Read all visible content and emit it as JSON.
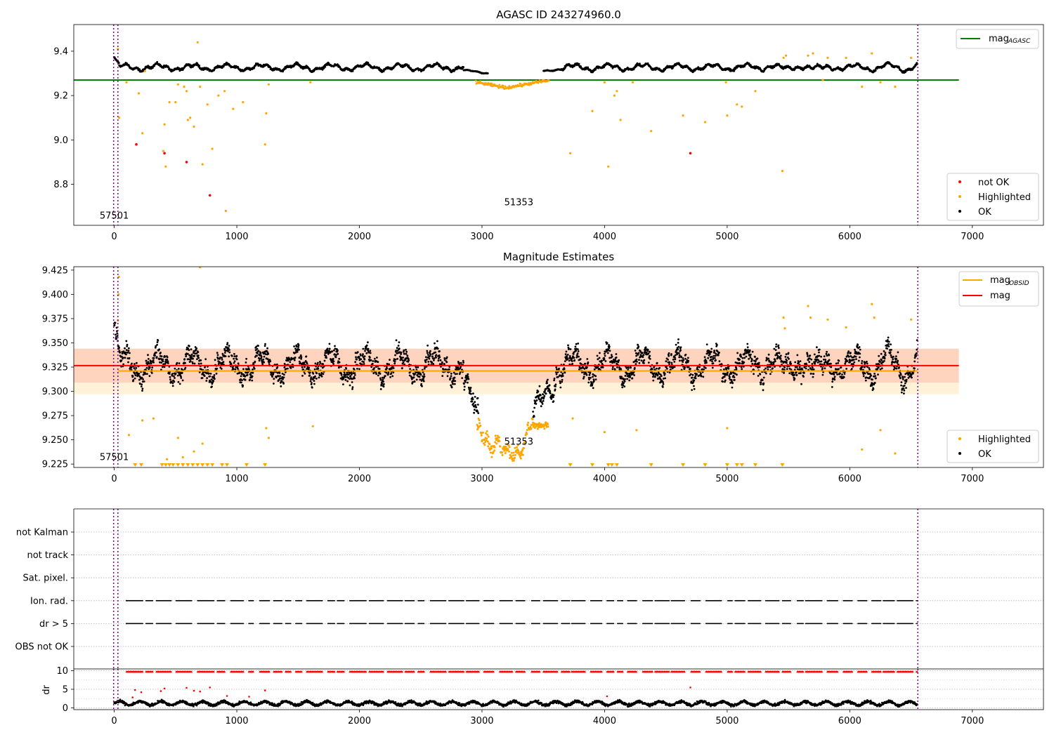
{
  "chart_data": [
    {
      "type": "scatter",
      "title": "AGASC ID 243274960.0",
      "xlim": [
        -330,
        7580
      ],
      "ylim": [
        8.615,
        9.52
      ],
      "xticks": [
        0,
        1000,
        2000,
        3000,
        4000,
        5000,
        6000,
        7000
      ],
      "yticks": [
        8.8,
        9.0,
        9.2,
        9.4
      ],
      "ytick_labels": [
        "8.8",
        "9.0",
        "9.2",
        "9.4"
      ],
      "vlines": [
        {
          "x": -5,
          "color": "#800080"
        },
        {
          "x": 30,
          "color": "#800080"
        },
        {
          "x": 6555,
          "color": "#800080"
        }
      ],
      "hline": {
        "y": 9.27,
        "x_end": 6890,
        "color": "#008000",
        "name": "magAGASC"
      },
      "annotations": [
        {
          "text": "57501",
          "x": 0,
          "y": 8.645
        },
        {
          "text": "51353",
          "x": 3300,
          "y": 8.705
        }
      ],
      "legend_top": [
        {
          "label": "mag",
          "sub": "AGASC",
          "color": "#008000",
          "kind": "line"
        }
      ],
      "legend_bottom": [
        {
          "label": "not OK",
          "color": "#ff0000",
          "kind": "marker"
        },
        {
          "label": "Highlighted",
          "color": "#ffa500",
          "kind": "marker"
        },
        {
          "label": "OK",
          "color": "#000000",
          "kind": "marker"
        }
      ],
      "series": [
        {
          "name": "OK",
          "color": "#000000",
          "profile": "ok_agasc"
        },
        {
          "name": "Highlighted",
          "color": "#ffa500",
          "points": [
            [
              30,
              9.41
            ],
            [
              40,
              9.1
            ],
            [
              100,
              9.26
            ],
            [
              200,
              9.21
            ],
            [
              230,
              9.03
            ],
            [
              250,
              9.31
            ],
            [
              400,
              8.95
            ],
            [
              410,
              9.07
            ],
            [
              420,
              8.88
            ],
            [
              450,
              9.17
            ],
            [
              500,
              9.17
            ],
            [
              520,
              9.25
            ],
            [
              570,
              9.24
            ],
            [
              590,
              9.22
            ],
            [
              600,
              9.09
            ],
            [
              620,
              9.1
            ],
            [
              650,
              9.06
            ],
            [
              680,
              9.44
            ],
            [
              700,
              9.24
            ],
            [
              720,
              8.89
            ],
            [
              760,
              9.16
            ],
            [
              800,
              8.96
            ],
            [
              850,
              9.2
            ],
            [
              900,
              9.22
            ],
            [
              910,
              8.68
            ],
            [
              970,
              9.14
            ],
            [
              1050,
              9.17
            ],
            [
              1230,
              8.98
            ],
            [
              1240,
              9.12
            ],
            [
              1260,
              9.25
            ],
            [
              1600,
              9.26
            ],
            [
              3720,
              8.94
            ],
            [
              3900,
              9.13
            ],
            [
              4000,
              9.26
            ],
            [
              4030,
              8.88
            ],
            [
              4080,
              9.2
            ],
            [
              4100,
              9.22
            ],
            [
              4130,
              9.09
            ],
            [
              4230,
              9.26
            ],
            [
              4380,
              9.04
            ],
            [
              4640,
              9.11
            ],
            [
              4820,
              9.08
            ],
            [
              4990,
              9.26
            ],
            [
              5000,
              9.11
            ],
            [
              5080,
              9.16
            ],
            [
              5120,
              9.15
            ],
            [
              5230,
              9.22
            ],
            [
              5450,
              8.86
            ],
            [
              5460,
              9.37
            ],
            [
              5480,
              9.38
            ],
            [
              5660,
              9.38
            ],
            [
              5700,
              9.39
            ],
            [
              5780,
              9.27
            ],
            [
              5820,
              9.37
            ],
            [
              5970,
              9.37
            ],
            [
              6100,
              9.24
            ],
            [
              6180,
              9.39
            ],
            [
              6250,
              9.26
            ],
            [
              6370,
              9.24
            ],
            [
              6500,
              9.37
            ]
          ]
        },
        {
          "name": "not OK",
          "color": "#ff0000",
          "points": [
            [
              180,
              8.98
            ],
            [
              410,
              8.94
            ],
            [
              590,
              8.9
            ],
            [
              780,
              8.75
            ],
            [
              4700,
              8.94
            ]
          ]
        }
      ]
    },
    {
      "type": "scatter",
      "title": "Magnitude Estimates",
      "xlim": [
        -330,
        7580
      ],
      "ylim": [
        9.2215,
        9.4285
      ],
      "xticks": [
        0,
        1000,
        2000,
        3000,
        4000,
        5000,
        6000,
        7000
      ],
      "yticks": [
        9.225,
        9.25,
        9.275,
        9.3,
        9.325,
        9.35,
        9.375,
        9.4,
        9.425
      ],
      "ytick_labels": [
        "9.225",
        "9.250",
        "9.275",
        "9.300",
        "9.325",
        "9.350",
        "9.375",
        "9.400",
        "9.425"
      ],
      "vlines": [
        {
          "x": -5,
          "color": "#800080"
        },
        {
          "x": 30,
          "color": "#800080"
        },
        {
          "x": 6555,
          "color": "#800080"
        }
      ],
      "bands": [
        {
          "y0": 9.297,
          "y1": 9.344,
          "color": "#ffa500",
          "opacity": 0.15
        },
        {
          "y0": 9.309,
          "y1": 9.344,
          "color": "#ff0000",
          "opacity": 0.12
        }
      ],
      "hlines": [
        {
          "y": 9.321,
          "x_start": 30,
          "x_end": 6555,
          "color": "#ffa500",
          "name": "magOBSID"
        },
        {
          "y": 9.3265,
          "x_start": -330,
          "x_end": 6890,
          "color": "#ff0000",
          "name": "mag"
        }
      ],
      "annotations": [
        {
          "text": "57501",
          "x": 0,
          "y": 9.229
        },
        {
          "text": "51353",
          "x": 3300,
          "y": 9.245
        }
      ],
      "legend_top": [
        {
          "label": "mag",
          "sub": "OBSID",
          "color": "#ffa500",
          "kind": "line"
        },
        {
          "label": "mag",
          "sub": "",
          "color": "#ff0000",
          "kind": "line"
        }
      ],
      "legend_bottom": [
        {
          "label": "Highlighted",
          "color": "#ffa500",
          "kind": "marker"
        },
        {
          "label": "OK",
          "color": "#000000",
          "kind": "marker"
        }
      ],
      "series": [
        {
          "name": "OK",
          "color": "#000000",
          "profile": "ok_obsid"
        },
        {
          "name": "Highlighted",
          "color": "#ffa500",
          "profile": "dip_obsid",
          "points": [
            [
              30,
              9.373
            ],
            [
              35,
              9.4
            ],
            [
              38,
              9.418
            ],
            [
              120,
              9.255
            ],
            [
              230,
              9.27
            ],
            [
              320,
              9.272
            ],
            [
              430,
              9.23
            ],
            [
              520,
              9.252
            ],
            [
              560,
              9.232
            ],
            [
              650,
              9.238
            ],
            [
              700,
              9.428
            ],
            [
              720,
              9.246
            ],
            [
              1240,
              9.262
            ],
            [
              1260,
              9.252
            ],
            [
              1620,
              9.264
            ],
            [
              3740,
              9.272
            ],
            [
              4000,
              9.258
            ],
            [
              4260,
              9.26
            ],
            [
              5000,
              9.262
            ],
            [
              5460,
              9.376
            ],
            [
              5470,
              9.365
            ],
            [
              5660,
              9.388
            ],
            [
              5680,
              9.376
            ],
            [
              5820,
              9.374
            ],
            [
              5970,
              9.366
            ],
            [
              6100,
              9.24
            ],
            [
              6180,
              9.39
            ],
            [
              6200,
              9.376
            ],
            [
              6250,
              9.26
            ],
            [
              6370,
              9.236
            ],
            [
              6500,
              9.374
            ]
          ]
        },
        {
          "name": "Highlighted below range",
          "color": "#ffa500",
          "x": [
            170,
            220,
            390,
            420,
            450,
            480,
            520,
            560,
            600,
            640,
            680,
            720,
            760,
            800,
            880,
            920,
            1080,
            1230,
            3720,
            3900,
            4030,
            4060,
            4100,
            4380,
            4640,
            4820,
            5000,
            5080,
            5120,
            5230,
            5450
          ]
        }
      ]
    },
    {
      "type": "scatter",
      "xlim": [
        -330,
        7580
      ],
      "categories": [
        "OBS not OK",
        "dr > 5",
        "Ion. rad.",
        "Sat. pixel.",
        "not track",
        "not Kalman"
      ],
      "xticks": [
        0,
        1000,
        2000,
        3000,
        4000,
        5000,
        6000,
        7000
      ],
      "vlines": [
        {
          "x": -5,
          "color": "#800080"
        },
        {
          "x": 30,
          "color": "#800080"
        },
        {
          "x": 6555,
          "color": "#800080"
        }
      ],
      "series": [
        {
          "name": "dr > 5",
          "category": "dr > 5",
          "color": "#000000",
          "profile": "flag_clusters"
        },
        {
          "name": "Ion. rad.",
          "category": "Ion. rad.",
          "color": "#000000",
          "profile": "flag_clusters"
        }
      ]
    },
    {
      "type": "scatter",
      "xlim": [
        -330,
        7580
      ],
      "ylim": [
        -0.5,
        10.5
      ],
      "ylabel": "dr",
      "yticks": [
        0,
        5,
        10
      ],
      "ytick_labels": [
        "0",
        "5",
        "10"
      ],
      "xticks": [
        0,
        1000,
        2000,
        3000,
        4000,
        5000,
        6000,
        7000
      ],
      "xtick_labels": [
        "0",
        "1000",
        "2000",
        "3000",
        "4000",
        "5000",
        "6000",
        "7000"
      ],
      "vlines": [
        {
          "x": -5,
          "color": "#800080"
        },
        {
          "x": 30,
          "color": "#800080"
        },
        {
          "x": 6555,
          "color": "#800080"
        }
      ],
      "series": [
        {
          "name": "dr",
          "color": "#000000",
          "profile": "dr_noise"
        },
        {
          "name": "dr clipped",
          "color": "#ff0000",
          "y": 9.8,
          "profile": "flag_clusters"
        },
        {
          "name": "dr outliers",
          "color": "#ff0000",
          "points": [
            [
              150,
              2.8
            ],
            [
              170,
              4.8
            ],
            [
              220,
              4.2
            ],
            [
              380,
              4.5
            ],
            [
              410,
              5.2
            ],
            [
              590,
              5.4
            ],
            [
              650,
              4.6
            ],
            [
              700,
              4.4
            ],
            [
              780,
              5.5
            ],
            [
              920,
              3.2
            ],
            [
              1100,
              3.0
            ],
            [
              1230,
              4.7
            ],
            [
              4020,
              3.1
            ],
            [
              4700,
              5.5
            ]
          ]
        }
      ]
    }
  ]
}
